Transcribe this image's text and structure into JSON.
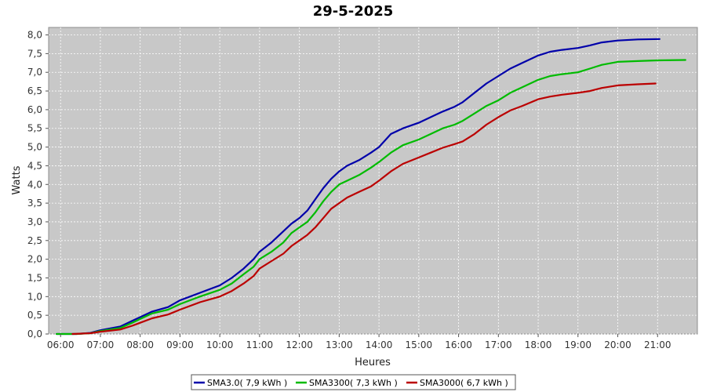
{
  "chart_data": {
    "type": "line",
    "title": "29-5-2025",
    "xlabel": "Heures",
    "ylabel": "Watts",
    "xlim": [
      5.7,
      22.0
    ],
    "ylim": [
      0.0,
      8.2
    ],
    "x_ticks": [
      {
        "value": 6,
        "label": "06:00"
      },
      {
        "value": 7,
        "label": "07:00"
      },
      {
        "value": 8,
        "label": "08:00"
      },
      {
        "value": 9,
        "label": "09:00"
      },
      {
        "value": 10,
        "label": "10:00"
      },
      {
        "value": 11,
        "label": "11:00"
      },
      {
        "value": 12,
        "label": "12:00"
      },
      {
        "value": 13,
        "label": "13:00"
      },
      {
        "value": 14,
        "label": "14:00"
      },
      {
        "value": 15,
        "label": "15:00"
      },
      {
        "value": 16,
        "label": "16:00"
      },
      {
        "value": 17,
        "label": "17:00"
      },
      {
        "value": 18,
        "label": "18:00"
      },
      {
        "value": 19,
        "label": "19:00"
      },
      {
        "value": 20,
        "label": "20:00"
      },
      {
        "value": 21,
        "label": "21:00"
      }
    ],
    "y_ticks": [
      {
        "value": 0.0,
        "label": "0,0"
      },
      {
        "value": 0.5,
        "label": "0,5"
      },
      {
        "value": 1.0,
        "label": "1,0"
      },
      {
        "value": 1.5,
        "label": "1,5"
      },
      {
        "value": 2.0,
        "label": "2,0"
      },
      {
        "value": 2.5,
        "label": "2,5"
      },
      {
        "value": 3.0,
        "label": "3,0"
      },
      {
        "value": 3.5,
        "label": "3,5"
      },
      {
        "value": 4.0,
        "label": "4,0"
      },
      {
        "value": 4.5,
        "label": "4,5"
      },
      {
        "value": 5.0,
        "label": "5,0"
      },
      {
        "value": 5.5,
        "label": "5,5"
      },
      {
        "value": 6.0,
        "label": "6,0"
      },
      {
        "value": 6.5,
        "label": "6,5"
      },
      {
        "value": 7.0,
        "label": "7,0"
      },
      {
        "value": 7.5,
        "label": "7,5"
      },
      {
        "value": 8.0,
        "label": "8,0"
      }
    ],
    "grid": true,
    "legend_position": "bottom",
    "series": [
      {
        "name": "SMA3.0( 7,9 kWh )",
        "color": "#0000aa",
        "x": [
          5.9,
          6.4,
          6.75,
          7.0,
          7.5,
          7.8,
          8.0,
          8.3,
          8.7,
          9.0,
          9.5,
          10.0,
          10.3,
          10.6,
          10.85,
          11.0,
          11.3,
          11.6,
          11.8,
          12.0,
          12.2,
          12.4,
          12.6,
          12.8,
          13.0,
          13.2,
          13.5,
          13.8,
          14.0,
          14.3,
          14.6,
          15.0,
          15.3,
          15.6,
          15.9,
          16.1,
          16.4,
          16.7,
          17.0,
          17.3,
          17.6,
          18.0,
          18.3,
          18.6,
          19.0,
          19.3,
          19.6,
          20.0,
          20.5,
          21.05
        ],
        "y": [
          0.0,
          0.0,
          0.03,
          0.1,
          0.2,
          0.35,
          0.45,
          0.6,
          0.72,
          0.9,
          1.1,
          1.3,
          1.5,
          1.75,
          2.0,
          2.2,
          2.45,
          2.75,
          2.95,
          3.1,
          3.3,
          3.6,
          3.9,
          4.15,
          4.35,
          4.5,
          4.65,
          4.85,
          5.0,
          5.35,
          5.5,
          5.65,
          5.8,
          5.95,
          6.08,
          6.2,
          6.45,
          6.7,
          6.9,
          7.1,
          7.25,
          7.45,
          7.55,
          7.6,
          7.65,
          7.72,
          7.8,
          7.85,
          7.88,
          7.89
        ]
      },
      {
        "name": "SMA3300( 7,3 kWh )",
        "color": "#00bb00",
        "x": [
          5.9,
          6.4,
          6.75,
          7.0,
          7.5,
          7.8,
          8.0,
          8.3,
          8.7,
          9.0,
          9.5,
          10.0,
          10.3,
          10.6,
          10.85,
          11.0,
          11.3,
          11.6,
          11.8,
          12.0,
          12.2,
          12.4,
          12.6,
          12.8,
          13.0,
          13.2,
          13.5,
          13.8,
          14.0,
          14.3,
          14.6,
          15.0,
          15.3,
          15.6,
          15.9,
          16.1,
          16.4,
          16.7,
          17.0,
          17.3,
          17.6,
          18.0,
          18.3,
          18.6,
          19.0,
          19.3,
          19.6,
          20.0,
          20.5,
          21.0,
          21.7
        ],
        "y": [
          0.0,
          0.0,
          0.02,
          0.08,
          0.16,
          0.3,
          0.4,
          0.55,
          0.65,
          0.8,
          1.0,
          1.18,
          1.35,
          1.6,
          1.8,
          2.0,
          2.2,
          2.45,
          2.7,
          2.85,
          3.0,
          3.25,
          3.55,
          3.8,
          4.0,
          4.1,
          4.25,
          4.45,
          4.6,
          4.85,
          5.05,
          5.2,
          5.35,
          5.5,
          5.6,
          5.7,
          5.9,
          6.1,
          6.25,
          6.45,
          6.6,
          6.8,
          6.9,
          6.95,
          7.0,
          7.1,
          7.2,
          7.28,
          7.3,
          7.32,
          7.33
        ]
      },
      {
        "name": "SMA3000( 6,7 kWh )",
        "color": "#bb0000",
        "x": [
          6.3,
          6.75,
          7.0,
          7.5,
          7.8,
          8.0,
          8.3,
          8.7,
          9.0,
          9.5,
          10.0,
          10.3,
          10.6,
          10.85,
          11.0,
          11.3,
          11.6,
          11.8,
          12.0,
          12.2,
          12.4,
          12.6,
          12.8,
          13.0,
          13.2,
          13.5,
          13.8,
          14.0,
          14.3,
          14.6,
          15.0,
          15.3,
          15.6,
          15.9,
          16.1,
          16.4,
          16.7,
          17.0,
          17.3,
          17.6,
          18.0,
          18.3,
          18.6,
          19.0,
          19.3,
          19.6,
          20.0,
          20.5,
          20.95
        ],
        "y": [
          0.0,
          0.02,
          0.06,
          0.12,
          0.22,
          0.3,
          0.42,
          0.52,
          0.65,
          0.85,
          1.0,
          1.15,
          1.35,
          1.55,
          1.75,
          1.95,
          2.15,
          2.35,
          2.5,
          2.65,
          2.85,
          3.1,
          3.35,
          3.5,
          3.65,
          3.8,
          3.95,
          4.1,
          4.35,
          4.55,
          4.72,
          4.85,
          4.98,
          5.08,
          5.15,
          5.35,
          5.6,
          5.8,
          5.98,
          6.1,
          6.28,
          6.35,
          6.4,
          6.45,
          6.5,
          6.58,
          6.65,
          6.68,
          6.7
        ]
      }
    ]
  }
}
